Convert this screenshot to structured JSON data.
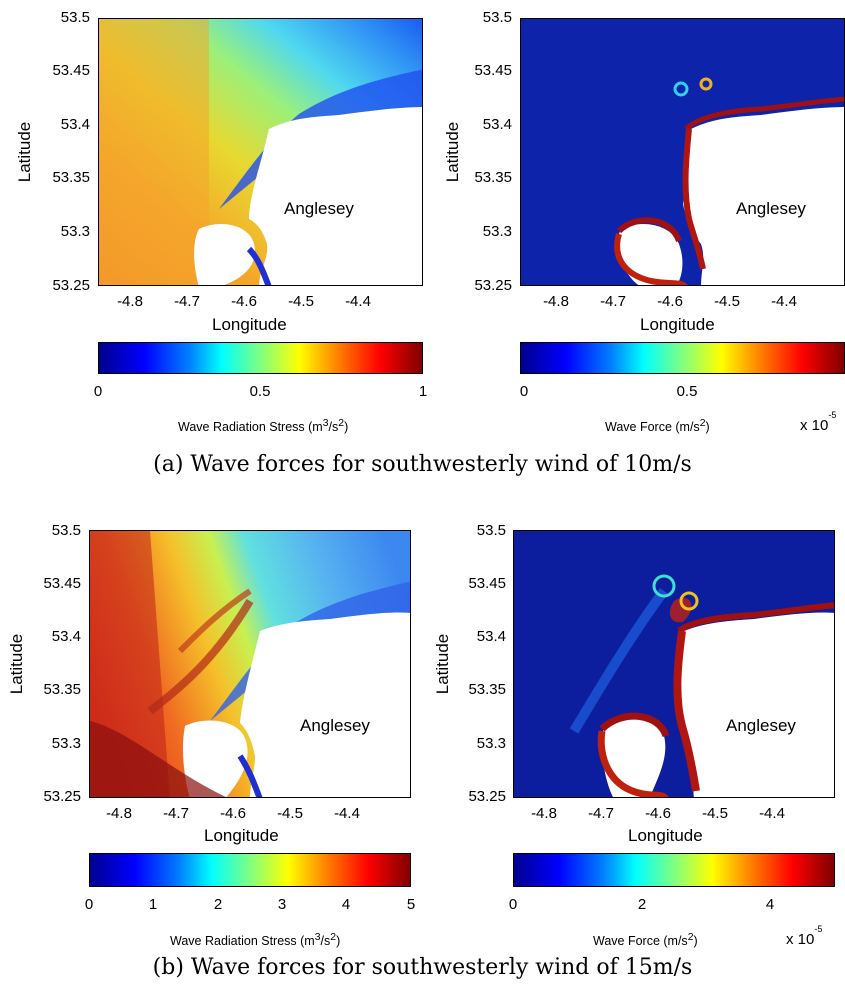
{
  "panels": {
    "a": {
      "caption": "(a) Wave forces for southwesterly wind of 10m/s",
      "left": {
        "ylabel": "Latitude",
        "xlabel": "Longitude",
        "yticks": [
          "53.5",
          "53.45",
          "53.4",
          "53.35",
          "53.3",
          "53.25"
        ],
        "xticks": [
          "-4.8",
          "-4.7",
          "-4.6",
          "-4.5",
          "-4.4"
        ],
        "island_label": "Anglesey",
        "cbar_ticks": [
          "0",
          "0.5",
          "1"
        ],
        "cbar_label_main": "Wave Radiation Stress (m",
        "cbar_label_sup1": "3",
        "cbar_label_mid": "/s",
        "cbar_label_sup2": "2",
        "cbar_label_end": ")"
      },
      "right": {
        "ylabel": "Latitude",
        "xlabel": "Longitude",
        "yticks": [
          "53.5",
          "53.45",
          "53.4",
          "53.35",
          "53.3",
          "53.25"
        ],
        "xticks": [
          "-4.8",
          "-4.7",
          "-4.6",
          "-4.5",
          "-4.4"
        ],
        "island_label": "Anglesey",
        "cbar_ticks": [
          "0",
          "0.5"
        ],
        "cbar_label_main": "Wave Force (m/s",
        "cbar_label_sup": "2",
        "cbar_label_end": ")",
        "multiplier": "x 10",
        "multiplier_exp": "-5"
      }
    },
    "b": {
      "caption": "(b) Wave forces for southwesterly wind of 15m/s",
      "left": {
        "ylabel": "Latitude",
        "xlabel": "Longitude",
        "yticks": [
          "53.5",
          "53.45",
          "53.4",
          "53.35",
          "53.3",
          "53.25"
        ],
        "xticks": [
          "-4.8",
          "-4.7",
          "-4.6",
          "-4.5",
          "-4.4"
        ],
        "island_label": "Anglesey",
        "cbar_ticks": [
          "0",
          "1",
          "2",
          "3",
          "4",
          "5"
        ],
        "cbar_label_main": "Wave Radiation Stress (m",
        "cbar_label_sup1": "3",
        "cbar_label_mid": "/s",
        "cbar_label_sup2": "2",
        "cbar_label_end": ")"
      },
      "right": {
        "ylabel": "Latitude",
        "xlabel": "Longitude",
        "yticks": [
          "53.5",
          "53.45",
          "53.4",
          "53.35",
          "53.3",
          "53.25"
        ],
        "xticks": [
          "-4.8",
          "-4.7",
          "-4.6",
          "-4.5",
          "-4.4"
        ],
        "island_label": "Anglesey",
        "cbar_ticks": [
          "0",
          "2",
          "4"
        ],
        "cbar_label_main": "Wave Force (m/s",
        "cbar_label_sup": "2",
        "cbar_label_end": ")",
        "multiplier": "x 10",
        "multiplier_exp": "-5"
      }
    }
  },
  "colormap": "jet",
  "colors": {
    "land": "#ffffff",
    "jet_stops": [
      "#00008f",
      "#0000ff",
      "#0080ff",
      "#00ffff",
      "#80ff80",
      "#ffff00",
      "#ff8000",
      "#ff0000",
      "#800000"
    ]
  }
}
